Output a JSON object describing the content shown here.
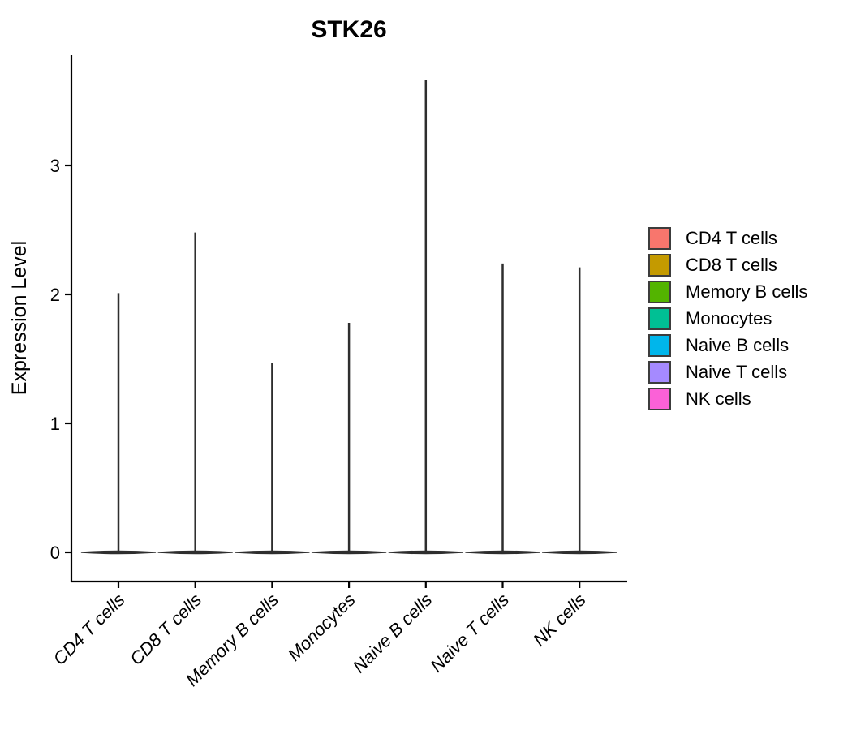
{
  "chart_data": {
    "type": "violin",
    "title": "STK26",
    "ylabel": "Expression Level",
    "xlabel": "",
    "categories": [
      "CD4 T cells",
      "CD8 T cells",
      "Memory B cells",
      "Monocytes",
      "Naive B cells",
      "Naive T cells",
      "NK cells"
    ],
    "series": [
      {
        "name": "CD4 T cells",
        "color": "#F8766D",
        "max_expression": 2.01,
        "bulk_at": 0
      },
      {
        "name": "CD8 T cells",
        "color": "#C49A00",
        "max_expression": 2.48,
        "bulk_at": 0
      },
      {
        "name": "Memory B cells",
        "color": "#53B400",
        "max_expression": 1.47,
        "bulk_at": 0
      },
      {
        "name": "Monocytes",
        "color": "#00C094",
        "max_expression": 1.78,
        "bulk_at": 0
      },
      {
        "name": "Naive B cells",
        "color": "#00B6EB",
        "max_expression": 3.66,
        "bulk_at": 0
      },
      {
        "name": "Naive T cells",
        "color": "#A58AFF",
        "max_expression": 2.24,
        "bulk_at": 0
      },
      {
        "name": "NK cells",
        "color": "#FB61D7",
        "max_expression": 2.21,
        "bulk_at": 0
      }
    ],
    "yticks": [
      0,
      1,
      2,
      3
    ],
    "ylim": [
      -0.23,
      3.86
    ],
    "grid": false,
    "legend_position": "right",
    "violin_style": "collapsed: density mass at 0 with a thin spike rising to max_expression",
    "outline_color": "#2E2E2E",
    "axis_color": "#000000"
  }
}
